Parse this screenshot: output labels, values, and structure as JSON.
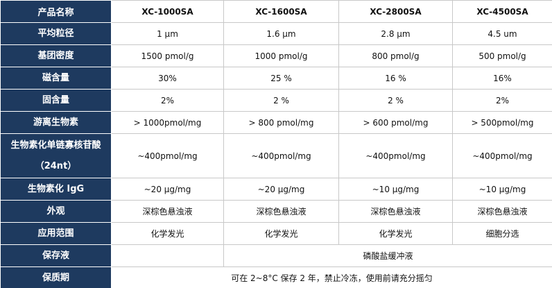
{
  "table": {
    "header": [
      "产品名称",
      "XC-1000SA",
      "XC-1600SA",
      "XC-2800SA",
      "XC-4500SA"
    ],
    "rows": [
      {
        "label": [
          "平均粒径"
        ],
        "cells": [
          "1 μm",
          "1.6 μm",
          "2.8 μm",
          "4.5 um"
        ]
      },
      {
        "label": [
          "基团密度"
        ],
        "cells": [
          "1500 pmol/g",
          "1000 pmol/g",
          "800 pmol/g",
          "500 pmol/g"
        ]
      },
      {
        "label": [
          "磁含量"
        ],
        "cells": [
          "30%",
          "25 %",
          "16 %",
          "16%"
        ]
      },
      {
        "label": [
          "固含量"
        ],
        "cells": [
          "2%",
          "2 %",
          "2 %",
          "2%"
        ]
      },
      {
        "label": [
          "游离生物素"
        ],
        "cells": [
          "> 1000pmol/mg",
          "> 800 pmol/mg",
          "> 600 pmol/mg",
          "> 500pmol/mg"
        ]
      },
      {
        "label": [
          "生物素化单链寡核苷酸",
          "（24nt）"
        ],
        "cells": [
          "~400pmol/mg",
          "~400pmol/mg",
          "~400pmol/mg",
          "~400pmol/mg"
        ]
      },
      {
        "label": [
          "生物素化 IgG"
        ],
        "cells": [
          "~20 μg/mg",
          "~20 μg/mg",
          "~10 μg/mg",
          "~10 μg/mg"
        ]
      },
      {
        "label": [
          "外观"
        ],
        "cells": [
          "深棕色悬浊液",
          "深棕色悬浊液",
          "深棕色悬浊液",
          "深棕色悬浊液"
        ]
      },
      {
        "label": [
          "应用范围"
        ],
        "cells": [
          "化学发光",
          "化学发光",
          "化学发光",
          "细胞分选"
        ]
      },
      {
        "label": [
          "保存液"
        ],
        "cells": [
          null,
          "磷酸盐缓冲液"
        ]
      },
      {
        "label": [
          "保质期"
        ],
        "cells": [
          "可在 2~8°C 保存 2 年，禁止冷冻，使用前请充分摇匀"
        ]
      }
    ]
  }
}
